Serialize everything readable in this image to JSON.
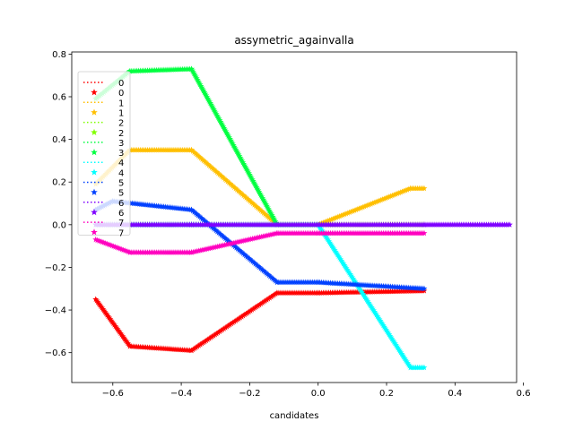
{
  "chart_data": {
    "type": "scatter",
    "title": "assymetric_againvalla",
    "xlabel": "candidates",
    "ylabel": "",
    "xlim": [
      -0.72,
      0.58
    ],
    "ylim": [
      -0.74,
      0.81
    ],
    "xticks": [
      -0.6,
      -0.4,
      -0.2,
      0.0,
      0.2,
      0.4,
      0.6
    ],
    "xtick_labels": [
      "−0.6",
      "−0.4",
      "−0.2",
      "0.0",
      "0.2",
      "0.4",
      "0.6"
    ],
    "yticks": [
      -0.6,
      -0.4,
      -0.2,
      0.0,
      0.2,
      0.4,
      0.6,
      0.8
    ],
    "ytick_labels": [
      "−0.6",
      "−0.4",
      "−0.2",
      "0.0",
      "0.2",
      "0.4",
      "0.6",
      "0.8"
    ],
    "legend_position": "upper-left",
    "series": [
      {
        "name": "0",
        "color": "#ff0000",
        "x": [
          -0.65,
          -0.55,
          -0.37,
          -0.12,
          0.0,
          0.31
        ],
        "y": [
          -0.35,
          -0.57,
          -0.59,
          -0.32,
          -0.32,
          -0.31
        ]
      },
      {
        "name": "1",
        "color": "#ffbf00",
        "x": [
          -0.65,
          -0.55,
          -0.37,
          -0.12,
          0.0,
          0.27,
          0.31
        ],
        "y": [
          0.19,
          0.35,
          0.35,
          0.0,
          0.0,
          0.17,
          0.17
        ]
      },
      {
        "name": "2",
        "color": "#80ff00",
        "x": [
          -0.65,
          -0.55,
          -0.37,
          -0.12,
          0.0,
          0.31
        ],
        "y": [
          0.0,
          0.0,
          0.0,
          0.0,
          0.0,
          0.0
        ]
      },
      {
        "name": "3",
        "color": "#00ff40",
        "x": [
          -0.65,
          -0.55,
          -0.37,
          -0.12,
          0.0
        ],
        "y": [
          0.59,
          0.72,
          0.73,
          0.0,
          0.0
        ]
      },
      {
        "name": "4",
        "color": "#00ffff",
        "x": [
          -0.65,
          -0.55,
          -0.37,
          -0.12,
          0.0,
          0.27,
          0.31
        ],
        "y": [
          0.0,
          0.0,
          0.0,
          0.0,
          0.0,
          -0.67,
          -0.67
        ]
      },
      {
        "name": "5",
        "color": "#0040ff",
        "x": [
          -0.65,
          -0.6,
          -0.37,
          -0.12,
          0.0,
          0.31
        ],
        "y": [
          0.07,
          0.11,
          0.07,
          -0.27,
          -0.27,
          -0.3
        ]
      },
      {
        "name": "6",
        "color": "#7f00ff",
        "x": [
          -0.65,
          -0.55,
          -0.37,
          -0.12,
          0.0,
          0.31,
          0.56
        ],
        "y": [
          0.0,
          0.0,
          0.0,
          0.0,
          0.0,
          0.0,
          0.0
        ]
      },
      {
        "name": "7",
        "color": "#ff00bf",
        "x": [
          -0.65,
          -0.55,
          -0.37,
          -0.12,
          0.0,
          0.31
        ],
        "y": [
          -0.07,
          -0.13,
          -0.13,
          -0.04,
          -0.04,
          -0.04
        ]
      }
    ]
  }
}
